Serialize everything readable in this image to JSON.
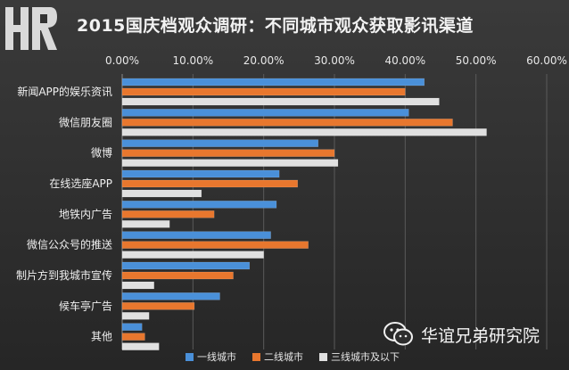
{
  "header": {
    "title": "2015国庆档观众调研：不同城市观众获取影讯渠道"
  },
  "watermark": {
    "text": "华谊兄弟研究院"
  },
  "colors": {
    "background": "#2e2e2e",
    "tier1": "#4a90d9",
    "tier2": "#e8772e",
    "tier3": "#e0e0e0"
  },
  "chart_data": {
    "type": "bar",
    "orientation": "horizontal",
    "title": "2015国庆档观众调研：不同城市观众获取影讯渠道",
    "categories": [
      "新闻APP的娱乐资讯",
      "微信朋友圈",
      "微博",
      "在线选座APP",
      "地铁内广告",
      "微信公众号的推送",
      "制片方到我城市宣传",
      "候车亭广告",
      "其他"
    ],
    "series": [
      {
        "name": "一线城市",
        "values": [
          0.427,
          0.405,
          0.277,
          0.222,
          0.218,
          0.21,
          0.18,
          0.138,
          0.028
        ]
      },
      {
        "name": "二线城市",
        "values": [
          0.4,
          0.467,
          0.3,
          0.248,
          0.13,
          0.263,
          0.157,
          0.102,
          0.032
        ]
      },
      {
        "name": "三线城市及以下",
        "values": [
          0.448,
          0.515,
          0.305,
          0.112,
          0.067,
          0.2,
          0.045,
          0.038,
          0.052
        ]
      }
    ],
    "xaxis": {
      "ticks": [
        "0.00%",
        "10.00%",
        "20.00%",
        "30.00%",
        "40.00%",
        "50.00%",
        "60.00%"
      ],
      "min": 0,
      "max": 0.6,
      "position": "top"
    },
    "grid": true,
    "legend_position": "bottom"
  }
}
